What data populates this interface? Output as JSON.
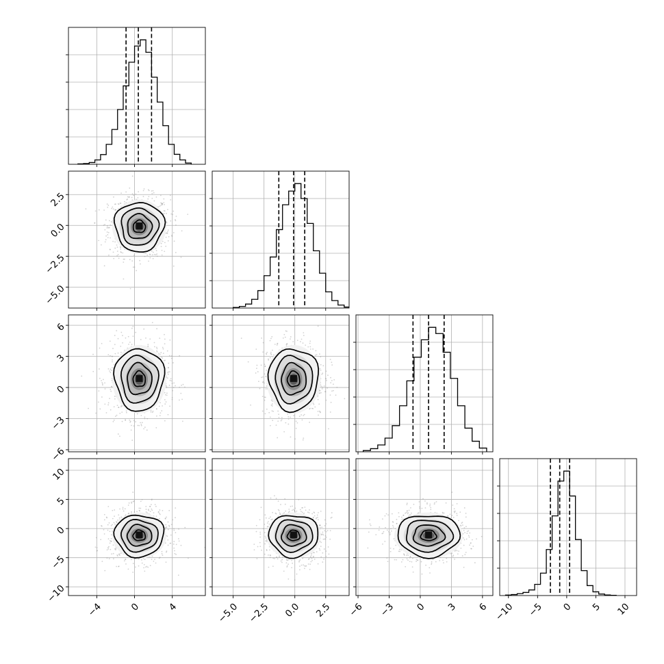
{
  "chart_data": {
    "type": "corner",
    "n_params": 4,
    "parameters": [
      {
        "index": 0,
        "range": [
          -7,
          7.5
        ],
        "center": 0.5,
        "sigma": 1.3,
        "quantiles": [
          -0.9,
          0.4,
          1.8
        ],
        "ticks": [
          {
            "value": -4,
            "label": "−4"
          },
          {
            "value": 0,
            "label": "0"
          },
          {
            "value": 4,
            "label": "4"
          }
        ]
      },
      {
        "index": 1,
        "range": [
          -6.7,
          4.4
        ],
        "center": -0.1,
        "sigma": 1.0,
        "quantiles": [
          -1.3,
          -0.1,
          0.8
        ],
        "ticks": [
          {
            "value": -5,
            "label": "−5.0"
          },
          {
            "value": -2.5,
            "label": "−2.5"
          },
          {
            "value": 0,
            "label": "0.0"
          },
          {
            "value": 2.5,
            "label": "2.5"
          }
        ]
      },
      {
        "index": 2,
        "range": [
          -6.2,
          7.0
        ],
        "center": 0.8,
        "sigma": 1.5,
        "quantiles": [
          -0.7,
          0.8,
          2.3
        ],
        "ticks": [
          {
            "value": -6,
            "label": "−6"
          },
          {
            "value": -3,
            "label": "−3"
          },
          {
            "value": 0,
            "label": "0"
          },
          {
            "value": 3,
            "label": "3"
          },
          {
            "value": 6,
            "label": "6"
          }
        ]
      },
      {
        "index": 3,
        "range": [
          -11.5,
          12
        ],
        "center": -1.2,
        "sigma": 1.8,
        "quantiles": [
          -2.8,
          -1.2,
          0.5
        ],
        "ticks": [
          {
            "value": -10,
            "label": "−10"
          },
          {
            "value": -5,
            "label": "−5"
          },
          {
            "value": 0,
            "label": "0"
          },
          {
            "value": 5,
            "label": "5"
          },
          {
            "value": 10,
            "label": "10"
          }
        ]
      }
    ],
    "histograms": [
      {
        "param": 0,
        "bin_edges": [
          -6.0,
          -5.4,
          -4.8,
          -4.2,
          -3.6,
          -3.0,
          -2.4,
          -1.8,
          -1.2,
          -0.6,
          0.0,
          0.6,
          1.2,
          1.8,
          2.4,
          3.0,
          3.6,
          4.2,
          4.8,
          5.4,
          6.0
        ],
        "counts": [
          0.3,
          0.6,
          1.4,
          3.5,
          7.8,
          16,
          28,
          44,
          63,
          82,
          95,
          100,
          90,
          70,
          50,
          31,
          16,
          8,
          3.5,
          1
        ]
      },
      {
        "param": 1,
        "bin_edges": [
          -5.0,
          -4.5,
          -4.0,
          -3.5,
          -3.0,
          -2.5,
          -2.0,
          -1.5,
          -1.0,
          -0.5,
          0.0,
          0.5,
          1.0,
          1.5,
          2.0,
          2.5,
          3.0,
          3.5,
          4.0,
          4.5
        ],
        "counts": [
          0.5,
          1.3,
          3.2,
          7,
          14,
          26,
          41,
          63,
          83,
          94,
          100,
          88,
          68,
          46,
          28,
          13,
          6,
          2.4,
          0.8
        ]
      },
      {
        "param": 2,
        "bin_edges": [
          -5.5,
          -4.8,
          -4.1,
          -3.4,
          -2.7,
          -2.0,
          -1.3,
          -0.6,
          0.1,
          0.8,
          1.5,
          2.2,
          2.9,
          3.6,
          4.3,
          5.0,
          5.7,
          6.4
        ],
        "counts": [
          1,
          2.5,
          5.5,
          11,
          21,
          37,
          57,
          76,
          90,
          100,
          95,
          80,
          59,
          37,
          19,
          8.5,
          3
        ]
      },
      {
        "param": 3,
        "bin_edges": [
          -10.5,
          -9.5,
          -8.5,
          -7.5,
          -6.5,
          -5.5,
          -4.5,
          -3.5,
          -2.5,
          -1.5,
          -0.5,
          0.5,
          1.5,
          2.5,
          3.5,
          4.5,
          5.5,
          6.5,
          7.5,
          8.5
        ],
        "counts": [
          0.4,
          0.8,
          1.5,
          2.5,
          4.5,
          9,
          18,
          37,
          64,
          92,
          100,
          80,
          45,
          20,
          8,
          3,
          1.2,
          0.5,
          0.2
        ]
      }
    ],
    "contour_levels": [
      0.5,
      1.0,
      1.5,
      2.0
    ],
    "grid": true,
    "title": "",
    "xlabel": "",
    "ylabel": ""
  }
}
